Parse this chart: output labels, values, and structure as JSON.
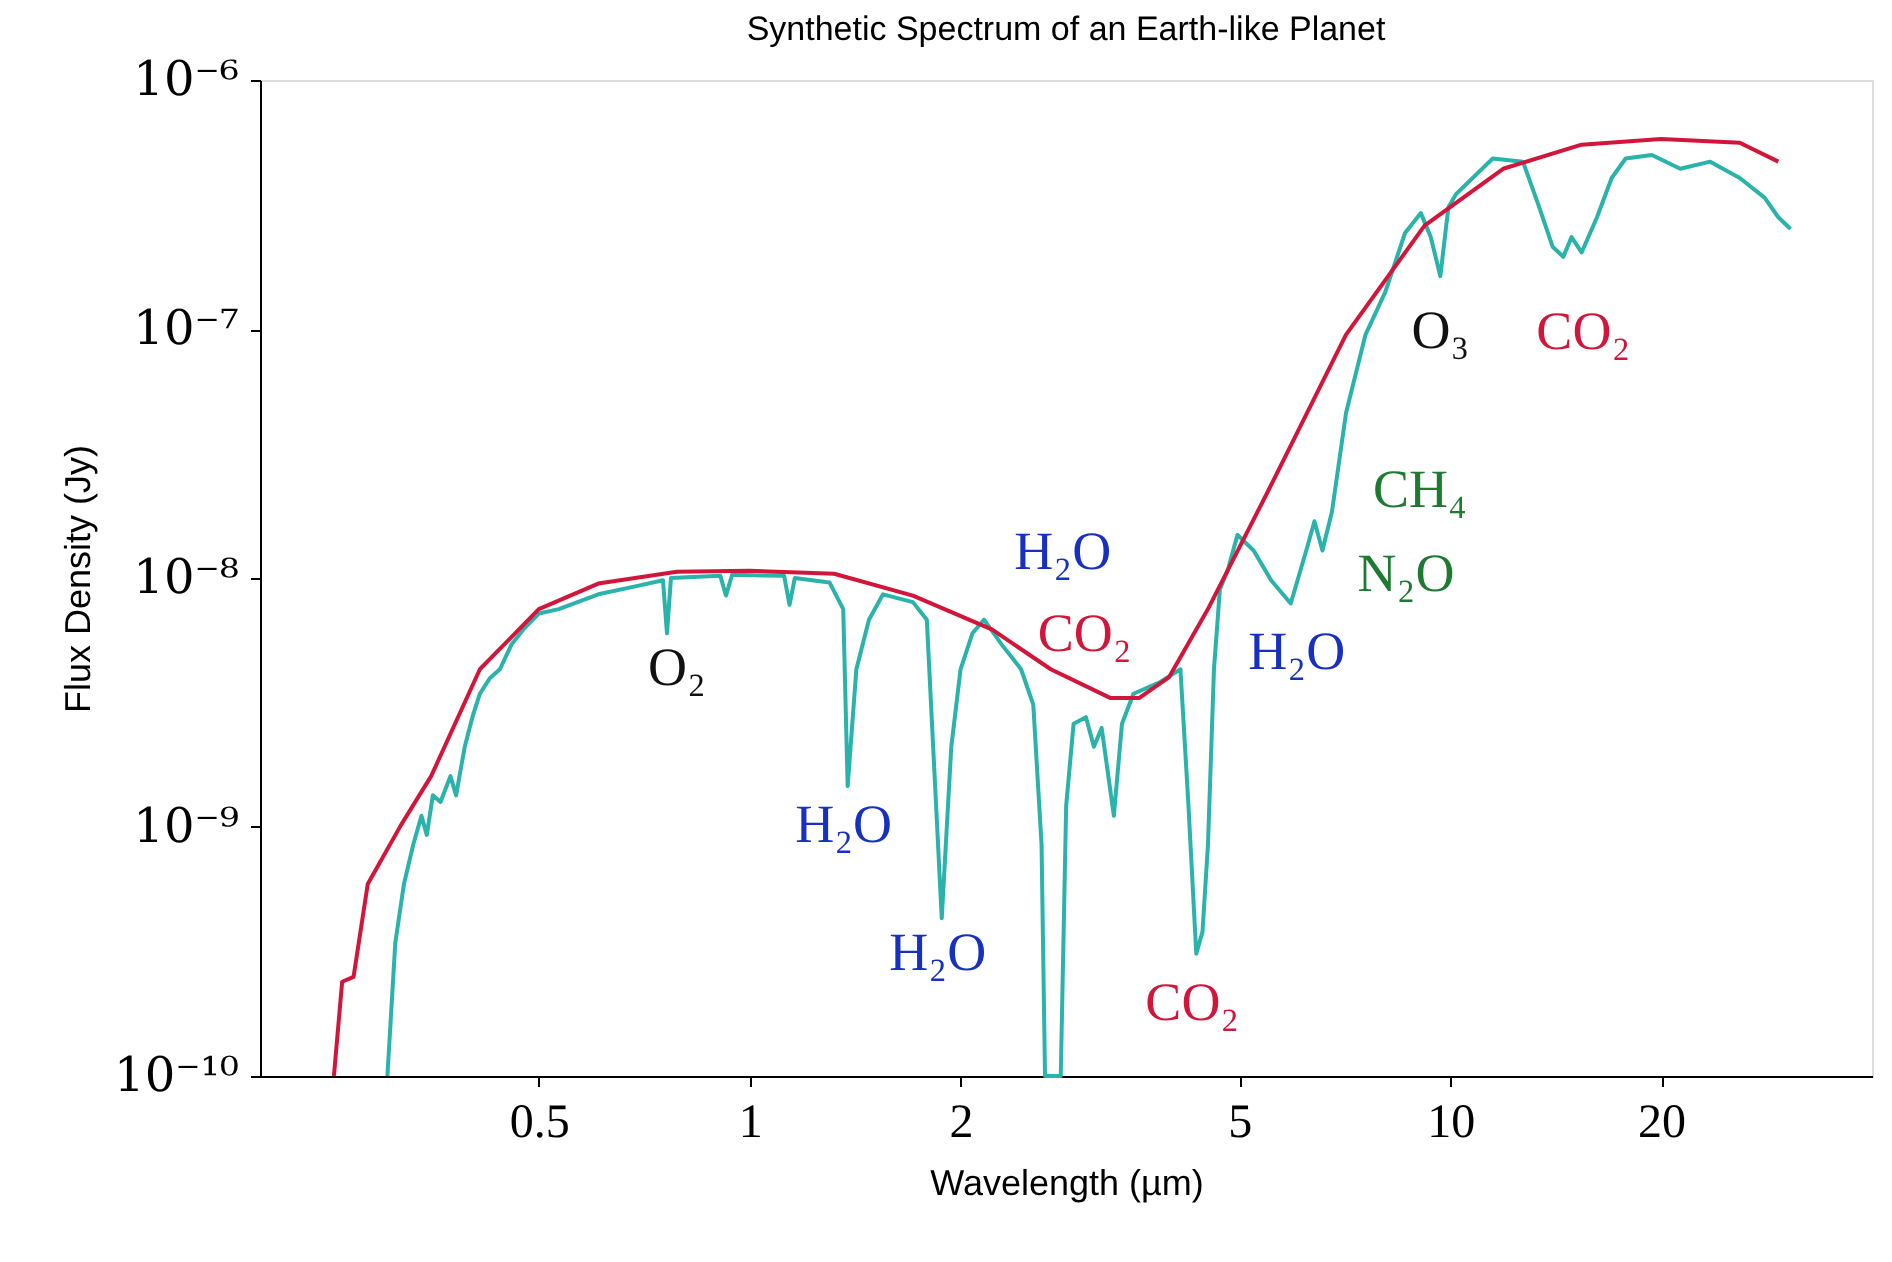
{
  "chart_data": {
    "type": "line",
    "title": "Synthetic Spectrum of an Earth-like Planet",
    "xlabel": "Wavelength (µm)",
    "ylabel": "Flux Density (Jy)",
    "log": "xy",
    "xlim": [
      0.2,
      40
    ],
    "ylim": [
      1e-10,
      1e-06
    ],
    "xticks": [
      0.5,
      1,
      2,
      5,
      10,
      20
    ],
    "yticks": [
      {
        "value": 1e-10,
        "label": "10⁻¹⁰"
      },
      {
        "value": 1e-09,
        "label": "10⁻⁹"
      },
      {
        "value": 1e-08,
        "label": "10⁻⁸"
      },
      {
        "value": 1e-07,
        "label": "10⁻⁷"
      },
      {
        "value": 1e-06,
        "label": "10⁻⁶"
      }
    ],
    "grid": false,
    "line_style": "solid",
    "marker": "none",
    "series": [
      {
        "color": "#2ab3aa",
        "x": [
          0.304,
          0.312,
          0.321,
          0.331,
          0.34,
          0.346,
          0.353,
          0.362,
          0.374,
          0.381,
          0.392,
          0.402,
          0.412,
          0.426,
          0.44,
          0.457,
          0.475,
          0.5,
          0.534,
          0.608,
          0.692,
          0.752,
          0.762,
          0.772,
          0.908,
          0.925,
          0.944,
          1.12,
          1.14,
          1.16,
          1.3,
          1.36,
          1.38,
          1.42,
          1.48,
          1.55,
          1.71,
          1.79,
          1.88,
          1.94,
          2.0,
          2.08,
          2.16,
          2.29,
          2.44,
          2.54,
          2.61,
          2.64,
          2.78,
          2.83,
          2.9,
          3.02,
          3.1,
          3.18,
          3.31,
          3.4,
          3.53,
          3.84,
          4.12,
          4.23,
          4.34,
          4.43,
          4.51,
          4.6,
          4.69,
          4.81,
          4.97,
          5.24,
          5.55,
          5.92,
          6.23,
          6.4,
          6.57,
          6.78,
          7.1,
          7.57,
          8.08,
          8.62,
          9.08,
          9.38,
          9.68,
          9.94,
          10.2,
          11.5,
          12.7,
          13.4,
          14.0,
          14.5,
          14.9,
          15.4,
          16.2,
          17.0,
          17.8,
          19.4,
          21.3,
          23.5,
          25.9,
          28.1,
          29.4,
          30.6
        ],
        "values": [
          1e-10,
          3.43e-10,
          5.9e-10,
          8.5e-10,
          1.11e-09,
          9.3e-10,
          1.34e-09,
          1.26e-09,
          1.6e-09,
          1.34e-09,
          2.1e-09,
          2.76e-09,
          3.43e-09,
          3.97e-09,
          4.3e-09,
          5.4e-09,
          6.2e-09,
          7.2e-09,
          7.5e-09,
          8.6e-09,
          9.3e-09,
          9.8e-09,
          6e-09,
          1e-08,
          1.02e-08,
          8.5e-09,
          1.03e-08,
          1.02e-08,
          7.8e-09,
          1e-08,
          9.6e-09,
          7.5e-09,
          1.46e-09,
          4.3e-09,
          6.8e-09,
          8.6e-09,
          8e-09,
          6.8e-09,
          4.3e-10,
          2.1e-09,
          4.3e-09,
          6e-09,
          6.8e-09,
          5.4e-09,
          4.3e-09,
          3.1e-09,
          8.5e-10,
          1e-10,
          1e-10,
          1.22e-09,
          2.6e-09,
          2.76e-09,
          2.1e-09,
          2.5e-09,
          1.11e-09,
          2.6e-09,
          3.43e-09,
          3.8e-09,
          4.3e-09,
          1.22e-09,
          3.1e-10,
          3.8e-10,
          8.5e-10,
          4.3e-09,
          9e-09,
          1.07e-08,
          1.49e-08,
          1.29e-08,
          9.8e-09,
          7.9e-09,
          1.29e-08,
          1.69e-08,
          1.29e-08,
          1.85e-08,
          4.6e-08,
          9.5e-08,
          1.41e-07,
          2.43e-07,
          2.92e-07,
          2.34e-07,
          1.63e-07,
          3.08e-07,
          3.49e-07,
          4.84e-07,
          4.7e-07,
          3.08e-07,
          2.14e-07,
          1.95e-07,
          2.34e-07,
          2.03e-07,
          2.81e-07,
          4.04e-07,
          4.84e-07,
          5e-07,
          4.4e-07,
          4.7e-07,
          4.04e-07,
          3.37e-07,
          2.81e-07,
          2.52e-07
        ]
      },
      {
        "color": "#d2153a",
        "x": [
          0.255,
          0.262,
          0.272,
          0.285,
          0.318,
          0.351,
          0.412,
          0.5,
          0.608,
          0.787,
          1,
          1.32,
          1.71,
          2.22,
          2.69,
          3.27,
          3.6,
          3.97,
          4.51,
          5.48,
          7.1,
          9.19,
          11.9,
          15.4,
          20,
          25.9,
          29.4
        ],
        "values": [
          1e-10,
          2.39e-10,
          2.5e-10,
          5.9e-10,
          1.02e-09,
          1.6e-09,
          4.3e-09,
          7.5e-09,
          9.5e-09,
          1.06e-08,
          1.07e-08,
          1.04e-08,
          8.5e-09,
          6.2e-09,
          4.3e-09,
          3.3e-09,
          3.3e-09,
          4e-09,
          7.5e-09,
          2.2e-08,
          9.5e-08,
          2.6e-07,
          4.4e-07,
          5.5e-07,
          5.8e-07,
          5.6e-07,
          4.7e-07
        ]
      }
    ],
    "annotations": [
      {
        "text": "O₂",
        "x": 0.762,
        "y": 6e-09
      },
      {
        "text": "H₂O",
        "x": 1.38,
        "y": 1.46e-09
      },
      {
        "text": "H₂O",
        "x": 1.88,
        "y": 4.3e-10
      },
      {
        "text": "H₂O",
        "x": 2.69,
        "y": 4.3e-09
      },
      {
        "text": "CO₂",
        "x": 2.69,
        "y": 4.3e-09
      },
      {
        "text": "CO₂",
        "x": 4.34,
        "y": 3.1e-10
      },
      {
        "text": "H₂O",
        "x": 5.92,
        "y": 7.9e-09
      },
      {
        "text": "CH₄",
        "x": 6.78,
        "y": 1.85e-08
      },
      {
        "text": "N₂O",
        "x": 6.78,
        "y": 1.85e-08
      },
      {
        "text": "O₃",
        "x": 9.68,
        "y": 1.63e-07
      },
      {
        "text": "CO₂",
        "x": 14.5,
        "y": 1.95e-07
      }
    ]
  }
}
